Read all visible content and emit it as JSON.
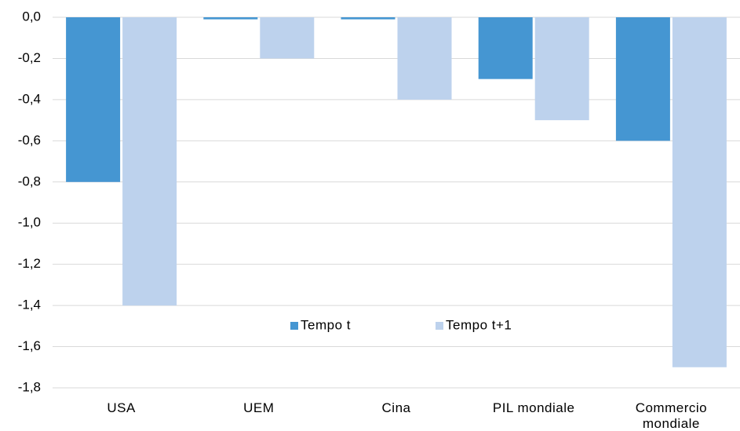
{
  "chart_data": {
    "type": "bar",
    "categories": [
      "USA",
      "UEM",
      "Cina",
      "PIL mondiale",
      "Commercio mondiale"
    ],
    "series": [
      {
        "name": "Tempo t",
        "color": "#4596d2",
        "values": [
          -0.8,
          -0.01,
          -0.01,
          -0.3,
          -0.6
        ]
      },
      {
        "name": "Tempo t+1",
        "color": "#bdd2ed",
        "values": [
          -1.4,
          -0.2,
          -0.4,
          -0.5,
          -1.7
        ]
      }
    ],
    "ylim": [
      -1.8,
      0
    ],
    "yticks": [
      {
        "value": 0,
        "label": "0,0"
      },
      {
        "value": -0.2,
        "label": "-0,2"
      },
      {
        "value": -0.4,
        "label": "-0,4"
      },
      {
        "value": -0.6,
        "label": "-0,6"
      },
      {
        "value": -0.8,
        "label": "-0,8"
      },
      {
        "value": -1.0,
        "label": "-1,0"
      },
      {
        "value": -1.2,
        "label": "-1,2"
      },
      {
        "value": -1.4,
        "label": "-1,4"
      },
      {
        "value": -1.6,
        "label": "-1,6"
      },
      {
        "value": -1.8,
        "label": "-1,8"
      }
    ],
    "grid": true,
    "legend": "center"
  }
}
